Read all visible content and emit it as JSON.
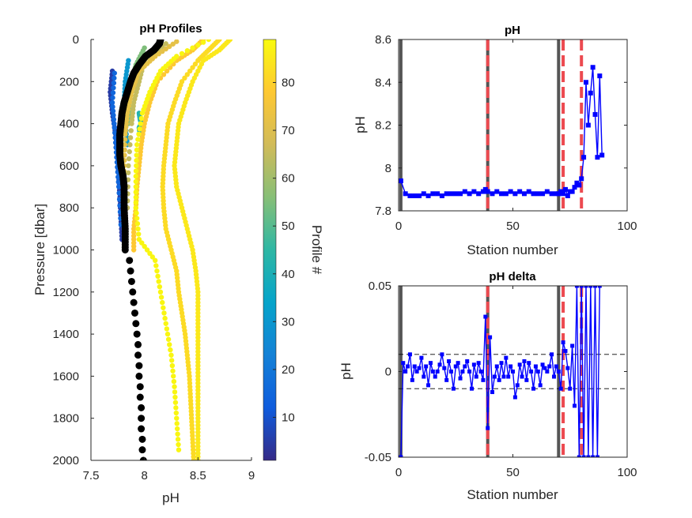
{
  "chart_data": [
    {
      "type": "scatter",
      "title": "pH Profiles",
      "xlabel": "pH",
      "ylabel": "Pressure [dbar]",
      "xlim": [
        7.5,
        9
      ],
      "ylim": [
        2000,
        0
      ],
      "y_reversed": true,
      "xticks": [
        "7.5",
        "8",
        "8.5",
        "9"
      ],
      "yticks": [
        "0",
        "200",
        "400",
        "600",
        "800",
        "1000",
        "1200",
        "1400",
        "1600",
        "1800",
        "2000"
      ],
      "colorbar": {
        "label": "Profile #",
        "range": [
          1,
          89
        ],
        "ticks": [
          "10",
          "20",
          "30",
          "40",
          "50",
          "60",
          "70",
          "80"
        ],
        "colormap": "parula"
      },
      "reference_profile": {
        "color": "#000000",
        "pressure": [
          0,
          20,
          50,
          80,
          120,
          160,
          200,
          250,
          300,
          350,
          400,
          450,
          500,
          550,
          600,
          650,
          700,
          800,
          900,
          1000,
          1050,
          1100,
          1150,
          1200,
          1250,
          1300,
          1350,
          1400,
          1450,
          1500,
          1550,
          1600,
          1650,
          1700,
          1750,
          1800,
          1850,
          1900,
          1950,
          2000
        ],
        "ph": [
          8.15,
          8.14,
          8.09,
          8.01,
          7.95,
          7.9,
          7.87,
          7.84,
          7.81,
          7.79,
          7.78,
          7.77,
          7.77,
          7.77,
          7.78,
          7.8,
          7.81,
          7.81,
          7.82,
          7.82,
          7.86,
          7.87,
          7.88,
          7.89,
          7.9,
          7.91,
          7.92,
          7.93,
          7.94,
          7.94,
          7.95,
          7.95,
          7.96,
          7.96,
          7.97,
          7.97,
          7.97,
          7.98,
          7.98,
          7.99
        ]
      },
      "profiles": [
        {
          "profile": 5,
          "pressure": [
            150,
            250,
            350,
            450,
            550,
            650,
            750,
            850,
            950
          ],
          "ph": [
            7.7,
            7.68,
            7.7,
            7.73,
            7.75,
            7.76,
            7.77,
            7.78,
            7.79
          ]
        },
        {
          "profile": 15,
          "pressure": [
            160,
            300,
            420,
            560,
            700,
            880
          ],
          "ph": [
            7.72,
            7.7,
            7.72,
            7.74,
            7.76,
            7.78
          ]
        },
        {
          "profile": 30,
          "pressure": [
            100,
            200,
            300,
            400,
            500
          ],
          "ph": [
            7.85,
            7.82,
            7.81,
            7.82,
            7.84
          ]
        },
        {
          "profile": 42,
          "pressure": [
            350,
            380,
            400,
            420,
            450
          ],
          "ph": [
            7.95,
            7.96,
            7.97,
            7.95,
            7.96
          ]
        },
        {
          "profile": 55,
          "pressure": [
            40,
            120,
            200,
            300,
            400
          ],
          "ph": [
            8.0,
            7.92,
            7.88,
            7.86,
            7.85
          ]
        },
        {
          "profile": 65,
          "pressure": [
            20,
            100,
            200,
            300,
            400,
            600,
            800
          ],
          "ph": [
            8.2,
            8.0,
            7.95,
            7.9,
            7.88,
            7.85,
            7.84
          ]
        },
        {
          "profile": 72,
          "pressure": [
            10,
            80,
            150,
            250,
            350,
            450,
            600,
            750,
            900,
            1000
          ],
          "ph": [
            8.3,
            8.1,
            7.95,
            7.88,
            7.84,
            7.82,
            7.81,
            7.8,
            7.81,
            7.82
          ]
        },
        {
          "profile": 78,
          "pressure": [
            0,
            50,
            100,
            200,
            300,
            400,
            500,
            600,
            700,
            800,
            900,
            1000
          ],
          "ph": [
            8.55,
            8.45,
            8.3,
            8.12,
            8.05,
            8.0,
            7.97,
            7.95,
            7.93,
            7.92,
            7.9,
            7.9
          ]
        },
        {
          "profile": 82,
          "pressure": [
            0,
            50,
            100,
            200,
            300,
            400,
            500,
            600,
            700,
            800,
            900,
            1000,
            1100,
            1200,
            1300,
            1400,
            1500,
            1600,
            1700,
            1800,
            1900,
            2000
          ],
          "ph": [
            8.7,
            8.6,
            8.5,
            8.35,
            8.28,
            8.22,
            8.2,
            8.18,
            8.17,
            8.18,
            8.2,
            8.25,
            8.3,
            8.32,
            8.35,
            8.38,
            8.4,
            8.42,
            8.43,
            8.44,
            8.45,
            8.46
          ]
        },
        {
          "profile": 85,
          "pressure": [
            0,
            50,
            100,
            200,
            300,
            400,
            500,
            600,
            700,
            800,
            900,
            1000,
            1100,
            1200,
            1300,
            1400,
            1500,
            1600,
            1700,
            1800,
            1900,
            2000
          ],
          "ph": [
            8.8,
            8.7,
            8.55,
            8.45,
            8.38,
            8.32,
            8.3,
            8.28,
            8.3,
            8.35,
            8.4,
            8.45,
            8.48,
            8.5,
            8.5,
            8.5,
            8.5,
            8.5,
            8.5,
            8.5,
            8.5,
            8.5
          ]
        },
        {
          "profile": 88,
          "pressure": [
            0,
            80,
            150,
            250,
            350,
            500,
            650,
            800,
            950,
            1050,
            1200,
            1350,
            1500,
            1650,
            1800,
            1950
          ],
          "ph": [
            8.6,
            8.3,
            8.15,
            8.05,
            7.98,
            7.93,
            7.92,
            7.92,
            7.95,
            8.1,
            8.15,
            8.2,
            8.25,
            8.28,
            8.3,
            8.32
          ]
        }
      ]
    },
    {
      "type": "line",
      "title": "pH",
      "xlabel": "Station number",
      "ylabel": "pH",
      "xlim": [
        0,
        100
      ],
      "ylim": [
        7.8,
        8.6
      ],
      "xticks": [
        "0",
        "50",
        "100"
      ],
      "yticks": [
        "7.8",
        "8",
        "8.2",
        "8.4",
        "8.6"
      ],
      "series": [
        {
          "color": "#0000ff",
          "marker": "square",
          "x": [
            1,
            3,
            5,
            7,
            9,
            11,
            13,
            15,
            17,
            19,
            21,
            23,
            25,
            27,
            29,
            31,
            33,
            35,
            37,
            38,
            39,
            41,
            43,
            45,
            47,
            49,
            51,
            53,
            55,
            57,
            59,
            61,
            63,
            65,
            67,
            69,
            70,
            71,
            72,
            73,
            74,
            75,
            76,
            77,
            78,
            79,
            80,
            81,
            82,
            83,
            84,
            85,
            86,
            87,
            88,
            89
          ],
          "y": [
            7.94,
            7.88,
            7.87,
            7.87,
            7.87,
            7.88,
            7.87,
            7.88,
            7.88,
            7.87,
            7.88,
            7.88,
            7.88,
            7.88,
            7.89,
            7.88,
            7.89,
            7.88,
            7.89,
            7.9,
            7.89,
            7.88,
            7.89,
            7.88,
            7.88,
            7.89,
            7.88,
            7.89,
            7.88,
            7.89,
            7.88,
            7.88,
            7.88,
            7.89,
            7.88,
            7.88,
            7.88,
            7.89,
            7.88,
            7.9,
            7.87,
            7.89,
            7.89,
            7.91,
            7.93,
            7.92,
            7.95,
            8.05,
            8.4,
            8.2,
            8.35,
            8.47,
            8.25,
            8.05,
            8.43,
            8.06
          ]
        }
      ],
      "reference_lines": [
        {
          "x": 1,
          "style": "solid",
          "color": "#555555"
        },
        {
          "x": 39,
          "style": "solid",
          "color": "#555555"
        },
        {
          "x": 39,
          "style": "dashed",
          "color": "#ec4a50"
        },
        {
          "x": 70,
          "style": "solid",
          "color": "#555555"
        },
        {
          "x": 72,
          "style": "dashed",
          "color": "#ec4a50"
        },
        {
          "x": 80,
          "style": "dashed",
          "color": "#ec4a50"
        }
      ]
    },
    {
      "type": "line",
      "title": "pH delta",
      "xlabel": "Station number",
      "ylabel": "pH",
      "xlim": [
        0,
        100
      ],
      "ylim": [
        -0.05,
        0.05
      ],
      "xticks": [
        "0",
        "50",
        "100"
      ],
      "yticks": [
        "-0.05",
        "0",
        "0.05"
      ],
      "threshold_lines": [
        0.01,
        -0.01
      ],
      "series": [
        {
          "color": "#0000ff",
          "marker": "square",
          "x": [
            1,
            2,
            3,
            4,
            5,
            6,
            7,
            8,
            9,
            10,
            11,
            12,
            13,
            14,
            15,
            16,
            17,
            18,
            19,
            20,
            21,
            22,
            23,
            24,
            25,
            26,
            27,
            28,
            29,
            30,
            31,
            32,
            33,
            34,
            35,
            36,
            37,
            38,
            39,
            40,
            41,
            42,
            43,
            44,
            45,
            46,
            47,
            48,
            49,
            50,
            51,
            52,
            53,
            54,
            55,
            56,
            57,
            58,
            59,
            60,
            61,
            62,
            63,
            64,
            65,
            66,
            67,
            68,
            69,
            70,
            71,
            72,
            73,
            74,
            75,
            76,
            77,
            78,
            79,
            80,
            81,
            82,
            83,
            84,
            85,
            86,
            87,
            88
          ],
          "y": [
            -0.05,
            0.005,
            0.0,
            0.003,
            0.01,
            -0.005,
            0.003,
            0.0,
            0.002,
            0.008,
            -0.003,
            0.003,
            -0.008,
            0.005,
            0.0,
            -0.003,
            0.0,
            0.004,
            0.01,
            0.002,
            -0.005,
            0.006,
            0.0,
            -0.01,
            0.003,
            0.005,
            -0.004,
            0.0,
            0.003,
            0.006,
            0.0,
            -0.01,
            0.004,
            -0.003,
            0.005,
            0.0,
            -0.005,
            0.032,
            -0.033,
            0.02,
            -0.012,
            -0.003,
            0.003,
            -0.005,
            0.005,
            -0.003,
            0.008,
            -0.003,
            0.003,
            0.0,
            -0.015,
            -0.008,
            0.004,
            -0.003,
            0.006,
            -0.005,
            0.005,
            0.0,
            -0.01,
            0.003,
            0.0,
            -0.008,
            0.004,
            0.002,
            0.0,
            0.003,
            0.01,
            -0.003,
            0.003,
            0.0,
            -0.01,
            0.017,
            0.012,
            0.002,
            -0.01,
            0.015,
            -0.02,
            0.05,
            -0.05,
            0.05,
            -0.05,
            0.05,
            -0.05,
            0.05,
            -0.05,
            0.05,
            -0.05,
            0.05
          ]
        }
      ],
      "reference_lines": [
        {
          "x": 1,
          "style": "solid",
          "color": "#555555"
        },
        {
          "x": 39,
          "style": "solid",
          "color": "#555555"
        },
        {
          "x": 39,
          "style": "dashed",
          "color": "#ec4a50"
        },
        {
          "x": 70,
          "style": "solid",
          "color": "#555555"
        },
        {
          "x": 72,
          "style": "dashed",
          "color": "#ec4a50"
        },
        {
          "x": 80,
          "style": "dashed",
          "color": "#ec4a50"
        }
      ]
    }
  ]
}
